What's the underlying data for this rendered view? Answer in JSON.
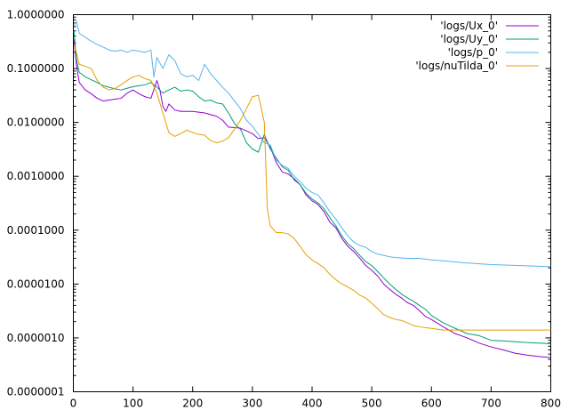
{
  "chart_data": {
    "type": "line",
    "title": "",
    "xlabel": "",
    "ylabel": "",
    "xlim": [
      0,
      800
    ],
    "ylim": [
      1e-07,
      1
    ],
    "yscale": "log",
    "grid": false,
    "legend_position": "top-right",
    "x_ticks": [
      {
        "value": 0,
        "label": "0"
      },
      {
        "value": 100,
        "label": "100"
      },
      {
        "value": 200,
        "label": "200"
      },
      {
        "value": 300,
        "label": "300"
      },
      {
        "value": 400,
        "label": "400"
      },
      {
        "value": 500,
        "label": "500"
      },
      {
        "value": 600,
        "label": "600"
      },
      {
        "value": 700,
        "label": "700"
      },
      {
        "value": 800,
        "label": "800"
      }
    ],
    "y_ticks": [
      {
        "value": 1,
        "label": "1.0000000"
      },
      {
        "value": 0.1,
        "label": "0.1000000"
      },
      {
        "value": 0.01,
        "label": "0.0100000"
      },
      {
        "value": 0.001,
        "label": "0.0010000"
      },
      {
        "value": 0.0001,
        "label": "0.0001000"
      },
      {
        "value": 1e-05,
        "label": "0.0000100"
      },
      {
        "value": 1e-06,
        "label": "0.0000010"
      },
      {
        "value": 1e-07,
        "label": "0.0000001"
      }
    ],
    "series": [
      {
        "name": "'logs/Ux_0'",
        "color": "#9400d3",
        "points": [
          [
            1,
            0.35
          ],
          [
            5,
            0.12
          ],
          [
            10,
            0.055
          ],
          [
            20,
            0.04
          ],
          [
            30,
            0.034
          ],
          [
            40,
            0.028
          ],
          [
            50,
            0.025
          ],
          [
            60,
            0.026
          ],
          [
            70,
            0.027
          ],
          [
            80,
            0.028
          ],
          [
            90,
            0.035
          ],
          [
            100,
            0.04
          ],
          [
            110,
            0.034
          ],
          [
            120,
            0.03
          ],
          [
            130,
            0.028
          ],
          [
            140,
            0.06
          ],
          [
            145,
            0.04
          ],
          [
            150,
            0.02
          ],
          [
            155,
            0.016
          ],
          [
            160,
            0.022
          ],
          [
            170,
            0.017
          ],
          [
            180,
            0.016
          ],
          [
            200,
            0.016
          ],
          [
            220,
            0.015
          ],
          [
            240,
            0.013
          ],
          [
            250,
            0.011
          ],
          [
            260,
            0.0082
          ],
          [
            280,
            0.0078
          ],
          [
            300,
            0.0062
          ],
          [
            310,
            0.005
          ],
          [
            320,
            0.0052
          ],
          [
            330,
            0.0035
          ],
          [
            340,
            0.0018
          ],
          [
            350,
            0.0012
          ],
          [
            360,
            0.0011
          ],
          [
            370,
            0.0009
          ],
          [
            380,
            0.0007
          ],
          [
            390,
            0.00045
          ],
          [
            400,
            0.00035
          ],
          [
            410,
            0.0003
          ],
          [
            420,
            0.00022
          ],
          [
            430,
            0.00014
          ],
          [
            440,
            0.00011
          ],
          [
            450,
            7e-05
          ],
          [
            460,
            5e-05
          ],
          [
            470,
            4e-05
          ],
          [
            480,
            3e-05
          ],
          [
            490,
            2.2e-05
          ],
          [
            500,
            1.8e-05
          ],
          [
            510,
            1.4e-05
          ],
          [
            520,
            1e-05
          ],
          [
            530,
            8e-06
          ],
          [
            540,
            6.5e-06
          ],
          [
            550,
            5.5e-06
          ],
          [
            560,
            4.5e-06
          ],
          [
            570,
            4e-06
          ],
          [
            580,
            3.2e-06
          ],
          [
            590,
            2.5e-06
          ],
          [
            600,
            2.2e-06
          ],
          [
            620,
            1.6e-06
          ],
          [
            640,
            1.2e-06
          ],
          [
            660,
            1e-06
          ],
          [
            680,
            8e-07
          ],
          [
            700,
            6.8e-07
          ],
          [
            720,
            6e-07
          ],
          [
            740,
            5.2e-07
          ],
          [
            760,
            4.8e-07
          ],
          [
            780,
            4.5e-07
          ],
          [
            800,
            4.3e-07
          ]
        ]
      },
      {
        "name": "'logs/Uy_0'",
        "color": "#009e73",
        "points": [
          [
            1,
            0.5
          ],
          [
            5,
            0.15
          ],
          [
            10,
            0.085
          ],
          [
            20,
            0.07
          ],
          [
            30,
            0.062
          ],
          [
            40,
            0.055
          ],
          [
            50,
            0.048
          ],
          [
            60,
            0.045
          ],
          [
            70,
            0.042
          ],
          [
            80,
            0.04
          ],
          [
            90,
            0.043
          ],
          [
            100,
            0.046
          ],
          [
            110,
            0.048
          ],
          [
            120,
            0.05
          ],
          [
            130,
            0.055
          ],
          [
            140,
            0.045
          ],
          [
            150,
            0.035
          ],
          [
            160,
            0.04
          ],
          [
            170,
            0.045
          ],
          [
            180,
            0.038
          ],
          [
            190,
            0.04
          ],
          [
            200,
            0.038
          ],
          [
            210,
            0.03
          ],
          [
            220,
            0.025
          ],
          [
            230,
            0.026
          ],
          [
            240,
            0.023
          ],
          [
            250,
            0.022
          ],
          [
            260,
            0.015
          ],
          [
            270,
            0.0095
          ],
          [
            280,
            0.0075
          ],
          [
            290,
            0.0042
          ],
          [
            300,
            0.0032
          ],
          [
            310,
            0.0028
          ],
          [
            320,
            0.006
          ],
          [
            330,
            0.0032
          ],
          [
            340,
            0.0022
          ],
          [
            350,
            0.0015
          ],
          [
            360,
            0.0013
          ],
          [
            370,
            0.00085
          ],
          [
            380,
            0.0007
          ],
          [
            390,
            0.00048
          ],
          [
            400,
            0.00038
          ],
          [
            410,
            0.00032
          ],
          [
            420,
            0.00025
          ],
          [
            430,
            0.00017
          ],
          [
            440,
            0.00012
          ],
          [
            450,
            7.8e-05
          ],
          [
            460,
            5.6e-05
          ],
          [
            470,
            4.5e-05
          ],
          [
            480,
            3.4e-05
          ],
          [
            490,
            2.6e-05
          ],
          [
            500,
            2.2e-05
          ],
          [
            510,
            1.7e-05
          ],
          [
            520,
            1.3e-05
          ],
          [
            530,
            1e-05
          ],
          [
            540,
            8e-06
          ],
          [
            550,
            6.5e-06
          ],
          [
            560,
            5.5e-06
          ],
          [
            570,
            4.8e-06
          ],
          [
            580,
            4e-06
          ],
          [
            590,
            3.4e-06
          ],
          [
            600,
            2.6e-06
          ],
          [
            620,
            1.9e-06
          ],
          [
            640,
            1.5e-06
          ],
          [
            660,
            1.2e-06
          ],
          [
            680,
            1.1e-06
          ],
          [
            700,
            9e-07
          ],
          [
            720,
            8.8e-07
          ],
          [
            740,
            8.5e-07
          ],
          [
            760,
            8.2e-07
          ],
          [
            780,
            8e-07
          ],
          [
            800,
            7.8e-07
          ]
        ]
      },
      {
        "name": "'logs/p_0'",
        "color": "#56b4e9",
        "points": [
          [
            1,
            0.6
          ],
          [
            5,
            0.75
          ],
          [
            10,
            0.45
          ],
          [
            20,
            0.38
          ],
          [
            30,
            0.32
          ],
          [
            40,
            0.28
          ],
          [
            50,
            0.25
          ],
          [
            60,
            0.22
          ],
          [
            70,
            0.21
          ],
          [
            80,
            0.22
          ],
          [
            90,
            0.2
          ],
          [
            100,
            0.22
          ],
          [
            110,
            0.21
          ],
          [
            120,
            0.2
          ],
          [
            130,
            0.22
          ],
          [
            135,
            0.07
          ],
          [
            140,
            0.16
          ],
          [
            150,
            0.1
          ],
          [
            160,
            0.18
          ],
          [
            170,
            0.14
          ],
          [
            180,
            0.08
          ],
          [
            190,
            0.07
          ],
          [
            200,
            0.075
          ],
          [
            210,
            0.06
          ],
          [
            220,
            0.12
          ],
          [
            230,
            0.08
          ],
          [
            240,
            0.06
          ],
          [
            250,
            0.045
          ],
          [
            260,
            0.035
          ],
          [
            270,
            0.025
          ],
          [
            280,
            0.018
          ],
          [
            290,
            0.011
          ],
          [
            300,
            0.0085
          ],
          [
            310,
            0.006
          ],
          [
            320,
            0.0042
          ],
          [
            330,
            0.0038
          ],
          [
            340,
            0.002
          ],
          [
            350,
            0.0016
          ],
          [
            360,
            0.0014
          ],
          [
            370,
            0.001
          ],
          [
            380,
            0.0008
          ],
          [
            390,
            0.0006
          ],
          [
            400,
            0.0005
          ],
          [
            410,
            0.00045
          ],
          [
            420,
            0.00032
          ],
          [
            430,
            0.00022
          ],
          [
            440,
            0.00016
          ],
          [
            450,
            0.00011
          ],
          [
            460,
            7.8e-05
          ],
          [
            470,
            6e-05
          ],
          [
            480,
            5.2e-05
          ],
          [
            490,
            4.8e-05
          ],
          [
            500,
            4e-05
          ],
          [
            510,
            3.6e-05
          ],
          [
            520,
            3.4e-05
          ],
          [
            530,
            3.2e-05
          ],
          [
            540,
            3.1e-05
          ],
          [
            560,
            3e-05
          ],
          [
            580,
            3e-05
          ],
          [
            600,
            2.8e-05
          ],
          [
            620,
            2.7e-05
          ],
          [
            650,
            2.5e-05
          ],
          [
            700,
            2.3e-05
          ],
          [
            750,
            2.2e-05
          ],
          [
            800,
            2.1e-05
          ]
        ]
      },
      {
        "name": "'logs/nuTilda_0'",
        "color": "#e69f00",
        "points": [
          [
            1,
            0.27
          ],
          [
            5,
            0.2
          ],
          [
            10,
            0.12
          ],
          [
            20,
            0.11
          ],
          [
            30,
            0.1
          ],
          [
            40,
            0.06
          ],
          [
            50,
            0.045
          ],
          [
            60,
            0.04
          ],
          [
            70,
            0.043
          ],
          [
            80,
            0.05
          ],
          [
            90,
            0.06
          ],
          [
            100,
            0.07
          ],
          [
            110,
            0.075
          ],
          [
            120,
            0.065
          ],
          [
            130,
            0.06
          ],
          [
            140,
            0.035
          ],
          [
            150,
            0.015
          ],
          [
            160,
            0.0065
          ],
          [
            170,
            0.0055
          ],
          [
            180,
            0.0062
          ],
          [
            190,
            0.0072
          ],
          [
            200,
            0.0065
          ],
          [
            210,
            0.006
          ],
          [
            220,
            0.0058
          ],
          [
            230,
            0.0046
          ],
          [
            240,
            0.0042
          ],
          [
            250,
            0.0045
          ],
          [
            260,
            0.0052
          ],
          [
            270,
            0.0075
          ],
          [
            280,
            0.011
          ],
          [
            290,
            0.018
          ],
          [
            300,
            0.03
          ],
          [
            310,
            0.032
          ],
          [
            320,
            0.01
          ],
          [
            325,
            0.00025
          ],
          [
            330,
            0.00012
          ],
          [
            340,
            9e-05
          ],
          [
            350,
            9e-05
          ],
          [
            360,
            8.5e-05
          ],
          [
            370,
            7e-05
          ],
          [
            380,
            5e-05
          ],
          [
            390,
            3.5e-05
          ],
          [
            400,
            2.8e-05
          ],
          [
            410,
            2.4e-05
          ],
          [
            420,
            2e-05
          ],
          [
            430,
            1.5e-05
          ],
          [
            440,
            1.2e-05
          ],
          [
            450,
            1e-05
          ],
          [
            460,
            8.8e-06
          ],
          [
            470,
            7.6e-06
          ],
          [
            480,
            6.2e-06
          ],
          [
            490,
            5.5e-06
          ],
          [
            500,
            4.4e-06
          ],
          [
            510,
            3.5e-06
          ],
          [
            520,
            2.7e-06
          ],
          [
            530,
            2.4e-06
          ],
          [
            540,
            2.2e-06
          ],
          [
            550,
            2.1e-06
          ],
          [
            560,
            1.9e-06
          ],
          [
            570,
            1.7e-06
          ],
          [
            580,
            1.6e-06
          ],
          [
            600,
            1.5e-06
          ],
          [
            620,
            1.4e-06
          ],
          [
            650,
            1.4e-06
          ],
          [
            700,
            1.4e-06
          ],
          [
            750,
            1.4e-06
          ],
          [
            800,
            1.4e-06
          ]
        ]
      }
    ]
  }
}
